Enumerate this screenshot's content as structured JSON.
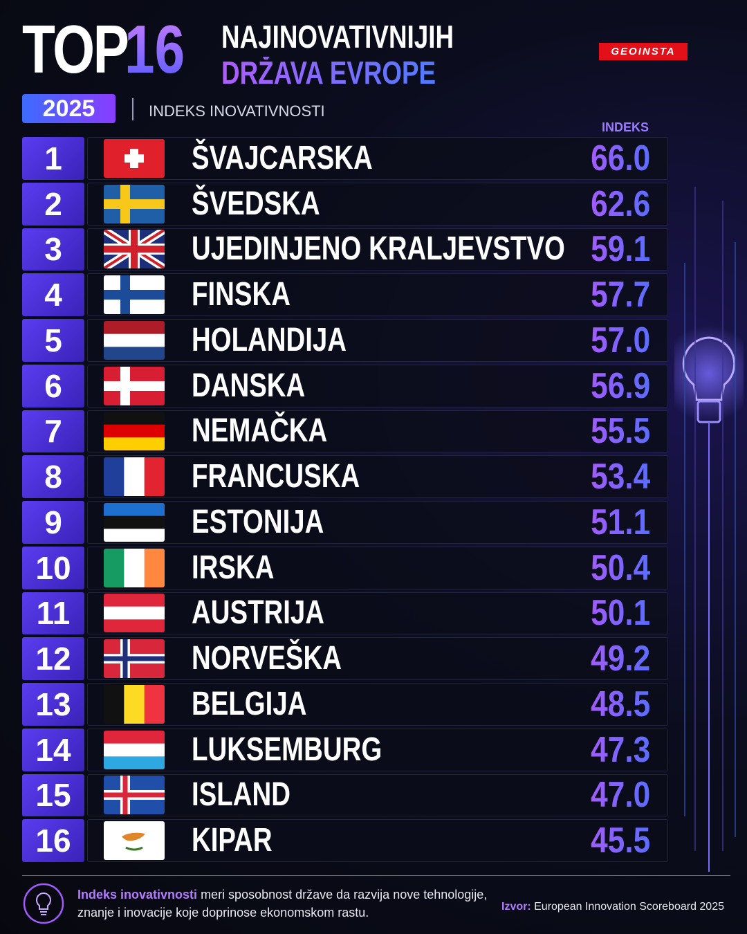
{
  "header": {
    "title_top": "TOP",
    "title_number": "16",
    "title_line1": "NAJINOVATIVNIJIH",
    "title_line2": "DRŽAVA EVROPE",
    "brand": "GEOINSTA",
    "year": "2025",
    "subtitle": "INDEKS INOVATIVNOSTI",
    "column_header": "INDEKS"
  },
  "table": {
    "rows": [
      [
        "1",
        "ŠVAJCARSKA",
        "66.0"
      ],
      [
        "2",
        "ŠVEDSKA",
        "62.6"
      ],
      [
        "3",
        "UJEDINJENO KRALJEVSTVO",
        "59.1"
      ],
      [
        "4",
        "FINSKA",
        "57.7"
      ],
      [
        "5",
        "HOLANDIJA",
        "57.0"
      ],
      [
        "6",
        "DANSKA",
        "56.9"
      ],
      [
        "7",
        "NEMAČKA",
        "55.5"
      ],
      [
        "8",
        "FRANCUSKA",
        "53.4"
      ],
      [
        "9",
        "ESTONIJA",
        "51.1"
      ],
      [
        "10",
        "IRSKA",
        "50.4"
      ],
      [
        "11",
        "AUSTRIJA",
        "50.1"
      ],
      [
        "12",
        "NORVEŠKA",
        "49.2"
      ],
      [
        "13",
        "BELGIJA",
        "48.5"
      ],
      [
        "14",
        "LUKSEMBURG",
        "47.3"
      ],
      [
        "15",
        "ISLAND",
        "47.0"
      ],
      [
        "16",
        "KIPAR",
        "45.5"
      ]
    ]
  },
  "footer": {
    "note_highlight": "Indeks inovativnosti",
    "note_text": "meri sposobnost države da razvija nove tehnologije, znanje i inovacije koje doprinose ekonomskom rastu.",
    "source_label": "Izvor:",
    "source_text": "European Innovation Scoreboard 2025"
  }
}
